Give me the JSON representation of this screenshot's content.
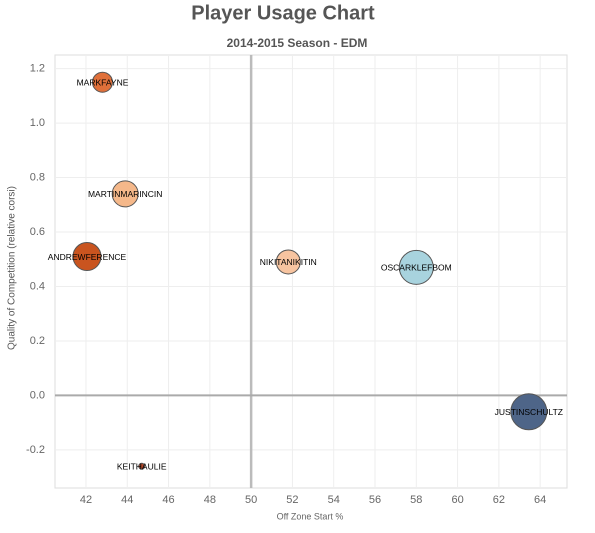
{
  "chart_data": {
    "type": "scatter",
    "title": "Player Usage Chart",
    "subtitle": "2014-2015 Season - EDM",
    "xlabel": "Off Zone Start %",
    "ylabel": "Quality of Competition (relative corsi)",
    "xlim": [
      40.5,
      65.3
    ],
    "ylim": [
      -0.34,
      1.25
    ],
    "xticks": [
      42,
      44,
      46,
      48,
      50,
      52,
      54,
      56,
      58,
      60,
      62,
      64
    ],
    "yticks": [
      -0.2,
      {
        "value": 0,
        "label": "0.0"
      },
      0.2,
      0.4,
      0.6,
      0.8,
      {
        "value": 1,
        "label": "1.0"
      },
      1.2
    ],
    "grid": true,
    "x_reference": 50,
    "y_reference": 0,
    "labels": [
      "MARKFAYNE",
      "MARTINMARINCIN",
      "ANDREWFERENCE",
      "NIKITANIKITIN",
      "OSCARKLEFBOM",
      "JUSTINSCHULTZ",
      "KEITHAULIE"
    ],
    "x": [
      42.8,
      43.9,
      42.05,
      51.8,
      58.0,
      63.45,
      44.7
    ],
    "values": [
      1.15,
      0.74,
      0.51,
      0.49,
      0.47,
      -0.06,
      -0.26
    ],
    "sizes": [
      100,
      169,
      196,
      144,
      289,
      324,
      9
    ],
    "colors": [
      "#e0703a",
      "#f5b88a",
      "#c9541f",
      "#f7c4a0",
      "#a8d3de",
      "#4e6588",
      "#b0482a"
    ]
  }
}
